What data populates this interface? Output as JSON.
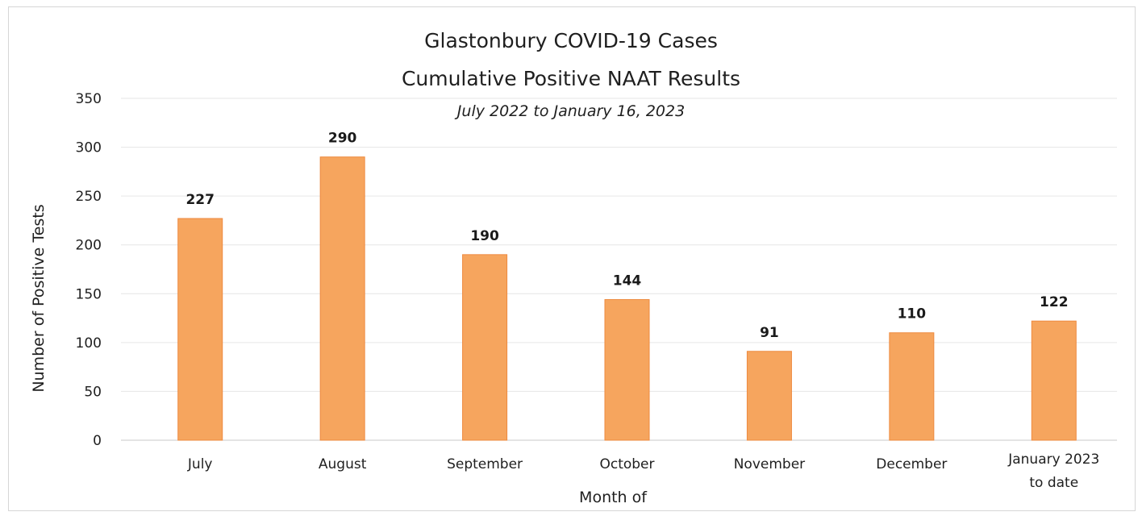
{
  "chart_data": {
    "type": "bar",
    "title": [
      "Glastonbury COVID-19 Cases",
      "Cumulative Positive NAAT Results"
    ],
    "subtitle": "July 2022 to January 16, 2023",
    "xlabel": "Month of",
    "ylabel": "Number of Positive Tests",
    "categories": [
      [
        "July"
      ],
      [
        "August"
      ],
      [
        "September"
      ],
      [
        "October"
      ],
      [
        "November"
      ],
      [
        "December"
      ],
      [
        "January 2023",
        "to date"
      ]
    ],
    "values": [
      227,
      290,
      190,
      144,
      91,
      110,
      122
    ],
    "ylim": [
      0,
      350
    ],
    "yticks": [
      0,
      50,
      100,
      150,
      200,
      250,
      300,
      350
    ],
    "grid": true,
    "legend": "none",
    "bar_color": "#f6a55e",
    "bar_edge_color": "#ee8a3f"
  }
}
